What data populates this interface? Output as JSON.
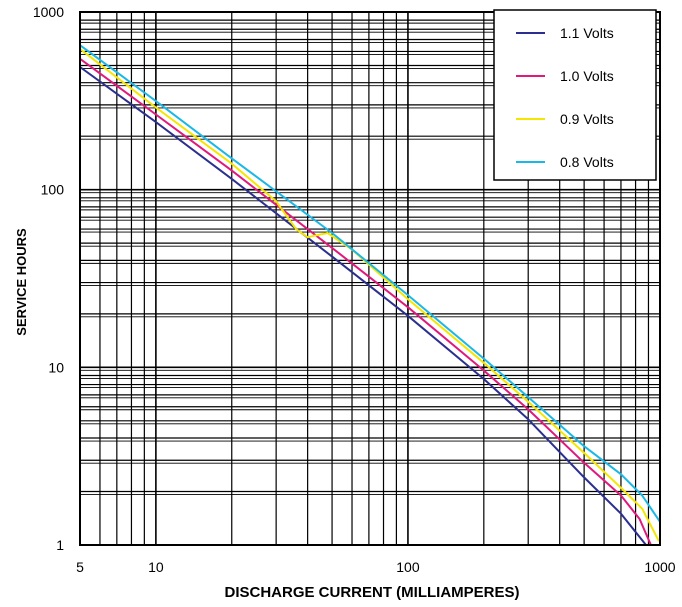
{
  "chart_data": {
    "type": "line",
    "title": "",
    "xlabel": "DISCHARGE CURRENT (MILLIAMPERES)",
    "ylabel": "SERVICE HOURS",
    "xscale": "log",
    "yscale": "log",
    "xlim": [
      5,
      1000
    ],
    "ylim": [
      1,
      1000
    ],
    "grid": true,
    "legend_position": "top-right",
    "x_tick_labels": [
      "5",
      "10",
      "100",
      "1000"
    ],
    "y_tick_labels": [
      "1",
      "10",
      "100",
      "1000"
    ],
    "series": [
      {
        "name": "1.1 Volts",
        "color": "#2b2f8f",
        "x": [
          5,
          10,
          20,
          50,
          100,
          200,
          300,
          500,
          700,
          880
        ],
        "y": [
          490,
          240,
          115,
          42,
          19.5,
          8.6,
          5.1,
          2.4,
          1.5,
          1.0
        ]
      },
      {
        "name": "1.0 Volts",
        "color": "#e0197d",
        "x": [
          5,
          10,
          20,
          50,
          100,
          200,
          300,
          500,
          700,
          830,
          920
        ],
        "y": [
          545,
          265,
          128,
          47,
          21.8,
          9.6,
          5.8,
          2.9,
          1.9,
          1.4,
          1.0
        ]
      },
      {
        "name": "0.9 Volts",
        "color": "#f4e600",
        "x": [
          5,
          10,
          20,
          30,
          36,
          40,
          48,
          60,
          100,
          200,
          300,
          500,
          700,
          850,
          990
        ],
        "y": [
          620,
          290,
          140,
          86,
          60,
          54,
          57,
          46,
          24.2,
          10.6,
          6.4,
          3.3,
          2.1,
          1.6,
          1.05
        ]
      },
      {
        "name": "0.8 Volts",
        "color": "#1ab8e6",
        "x": [
          5,
          10,
          20,
          50,
          100,
          200,
          300,
          500,
          700,
          850,
          1000
        ],
        "y": [
          650,
          315,
          150,
          57,
          25.5,
          11.2,
          6.8,
          3.6,
          2.5,
          1.9,
          1.35
        ]
      }
    ]
  }
}
